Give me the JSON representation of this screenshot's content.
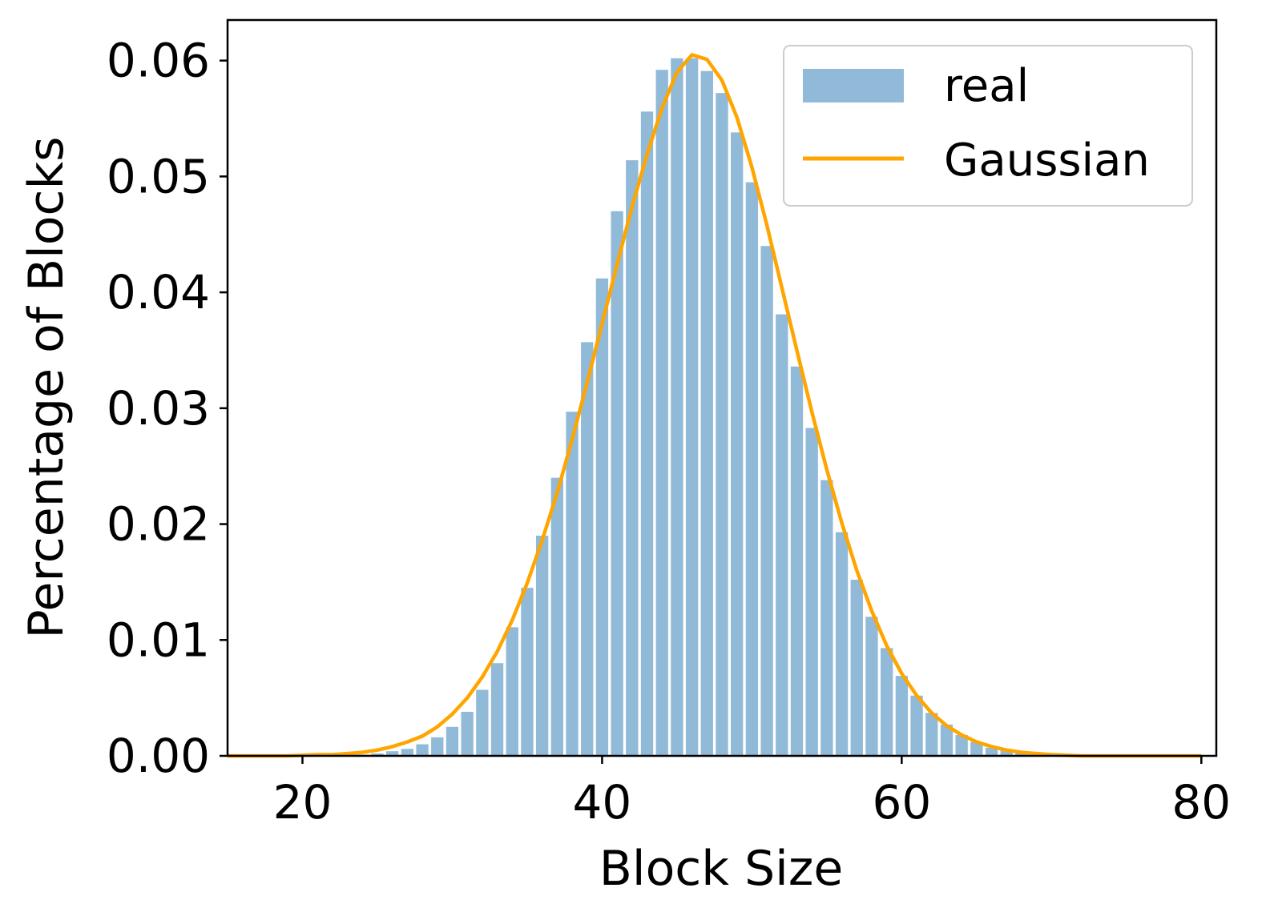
{
  "chart_data": {
    "type": "bar",
    "title": "",
    "xlabel": "Block Size",
    "ylabel": "Percentage of Blocks",
    "xlim": [
      15,
      81
    ],
    "ylim": [
      0,
      0.0635
    ],
    "xticks": [
      20,
      40,
      60,
      80
    ],
    "xtick_labels": [
      "20",
      "40",
      "60",
      "80"
    ],
    "yticks": [
      0.0,
      0.01,
      0.02,
      0.03,
      0.04,
      0.05,
      0.06
    ],
    "ytick_labels": [
      "0.00",
      "0.01",
      "0.02",
      "0.03",
      "0.04",
      "0.05",
      "0.06"
    ],
    "grid": false,
    "legend": {
      "position": "top-right",
      "entries": [
        "real",
        "Gaussian"
      ]
    },
    "colors": {
      "real": "#91bad9",
      "Gaussian": "#ffa500"
    },
    "series": [
      {
        "name": "real",
        "kind": "bar",
        "x": [
          24,
          25,
          26,
          27,
          28,
          29,
          30,
          31,
          32,
          33,
          34,
          35,
          36,
          37,
          38,
          39,
          40,
          41,
          42,
          43,
          44,
          45,
          46,
          47,
          48,
          49,
          50,
          51,
          52,
          53,
          54,
          55,
          56,
          57,
          58,
          59,
          60,
          61,
          62,
          63,
          64,
          65,
          66,
          67,
          68,
          69,
          70
        ],
        "values": [
          0.0001,
          0.0002,
          0.0004,
          0.0006,
          0.001,
          0.0016,
          0.0025,
          0.0038,
          0.0057,
          0.008,
          0.0111,
          0.0145,
          0.019,
          0.024,
          0.0297,
          0.0357,
          0.0412,
          0.047,
          0.0514,
          0.0556,
          0.0592,
          0.0602,
          0.0602,
          0.0591,
          0.0572,
          0.0538,
          0.0495,
          0.044,
          0.0381,
          0.0336,
          0.0283,
          0.0238,
          0.0193,
          0.0152,
          0.012,
          0.0093,
          0.0069,
          0.0052,
          0.0037,
          0.0027,
          0.0018,
          0.0012,
          0.0007,
          0.0005,
          0.0003,
          0.0002,
          0.0001
        ]
      },
      {
        "name": "Gaussian",
        "kind": "line",
        "x": [
          15,
          17,
          19,
          21,
          22,
          23,
          24,
          25,
          26,
          27,
          28,
          29,
          30,
          31,
          32,
          33,
          34,
          35,
          36,
          37,
          38,
          39,
          40,
          41,
          42,
          43,
          44,
          45,
          46,
          47,
          48,
          49,
          50,
          51,
          52,
          53,
          54,
          55,
          56,
          57,
          58,
          59,
          60,
          61,
          62,
          63,
          64,
          65,
          66,
          67,
          68,
          69,
          70,
          72,
          74,
          76,
          78,
          80
        ],
        "values": [
          0.0,
          0.0,
          0.0,
          0.0001,
          0.0001,
          0.0002,
          0.0003,
          0.0005,
          0.0008,
          0.0012,
          0.0017,
          0.0025,
          0.0036,
          0.005,
          0.0068,
          0.009,
          0.0117,
          0.0149,
          0.0186,
          0.0227,
          0.0273,
          0.0322,
          0.0373,
          0.0424,
          0.0474,
          0.0519,
          0.0559,
          0.059,
          0.0605,
          0.0601,
          0.0583,
          0.0551,
          0.0508,
          0.0458,
          0.0404,
          0.035,
          0.0297,
          0.0247,
          0.0201,
          0.016,
          0.0125,
          0.0095,
          0.0071,
          0.0052,
          0.0037,
          0.0026,
          0.0018,
          0.0012,
          0.0008,
          0.0005,
          0.0003,
          0.0002,
          0.0001,
          0.0,
          0.0,
          0.0,
          0.0,
          0.0
        ]
      }
    ]
  }
}
